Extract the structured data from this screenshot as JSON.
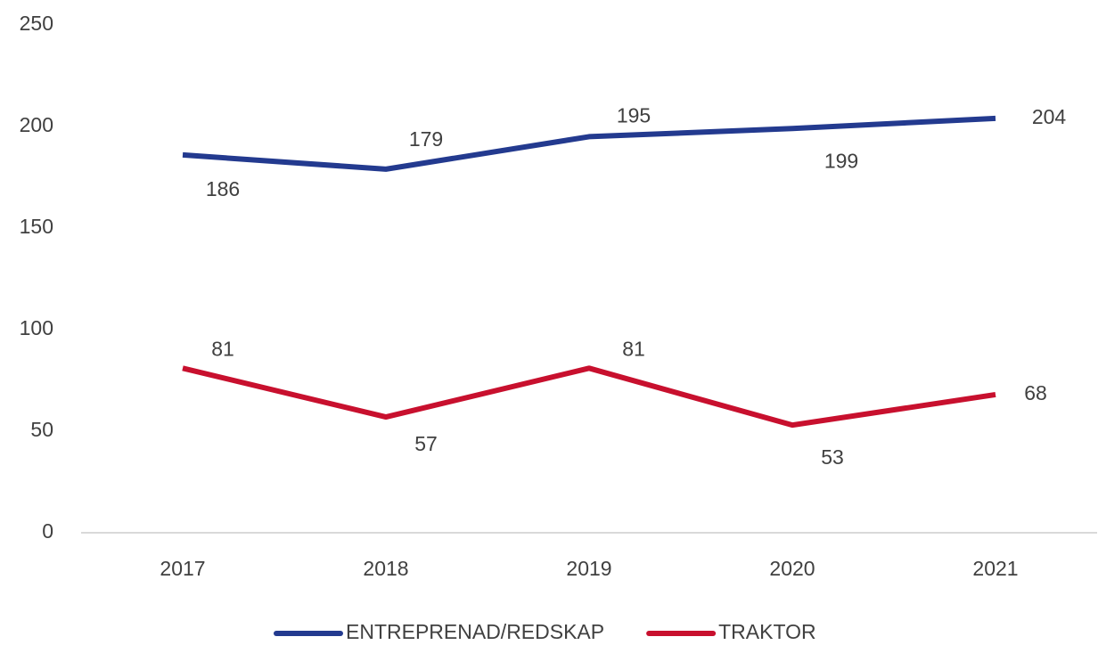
{
  "chart_data": {
    "type": "line",
    "categories": [
      "2017",
      "2018",
      "2019",
      "2020",
      "2021"
    ],
    "series": [
      {
        "name": "ENTREPRENAD/REDSKAP",
        "color": "#233a8f",
        "values": [
          186,
          179,
          195,
          199,
          204
        ]
      },
      {
        "name": "TRAKTOR",
        "color": "#c8102e",
        "values": [
          81,
          57,
          81,
          53,
          68
        ]
      }
    ],
    "ylim": [
      0,
      250
    ],
    "yticks": [
      0,
      50,
      100,
      150,
      200,
      250
    ],
    "grid": false,
    "legend": "bottom"
  }
}
